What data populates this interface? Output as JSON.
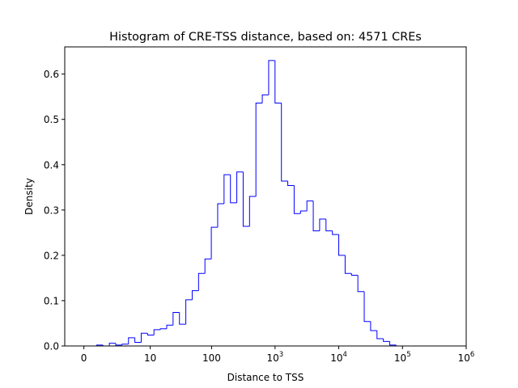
{
  "chart_data": {
    "type": "histogram",
    "title": "Histogram of CRE-TSS distance, based on: 4571 CREs",
    "xlabel": "Distance to TSS",
    "ylabel": "Density",
    "x_scale": "log10(distance + 1)",
    "xlim": [
      -0.3,
      6.0
    ],
    "ylim": [
      0.0,
      0.66
    ],
    "x_ticks": [
      {
        "value": 0,
        "label": "0"
      },
      {
        "value": 10,
        "label": "10"
      },
      {
        "value": 100,
        "label": "100"
      },
      {
        "value": 1000,
        "base": "10",
        "exp": "3"
      },
      {
        "value": 10000,
        "base": "10",
        "exp": "4"
      },
      {
        "value": 100000,
        "base": "10",
        "exp": "5"
      },
      {
        "value": 1000000,
        "base": "10",
        "exp": "6"
      }
    ],
    "y_ticks": [
      0.0,
      0.1,
      0.2,
      0.3,
      0.4,
      0.5,
      0.6
    ],
    "y_tick_labels": [
      "0.0",
      "0.1",
      "0.2",
      "0.3",
      "0.4",
      "0.5",
      "0.6"
    ],
    "bin_start": 0.0,
    "bin_width": 0.1,
    "bin_density": [
      0,
      0,
      0.002,
      0,
      0.006,
      0.002,
      0.004,
      0.018,
      0.008,
      0.028,
      0.024,
      0.036,
      0.038,
      0.046,
      0.074,
      0.048,
      0.102,
      0.122,
      0.16,
      0.192,
      0.262,
      0.314,
      0.378,
      0.316,
      0.384,
      0.264,
      0.33,
      0.536,
      0.554,
      0.63,
      0.536,
      0.364,
      0.354,
      0.292,
      0.298,
      0.32,
      0.254,
      0.28,
      0.254,
      0.246,
      0.2,
      0.16,
      0.156,
      0.12,
      0.054,
      0.034,
      0.016,
      0.01,
      0.002,
      0.0
    ],
    "line_color": "#0000ff",
    "grid": false
  }
}
